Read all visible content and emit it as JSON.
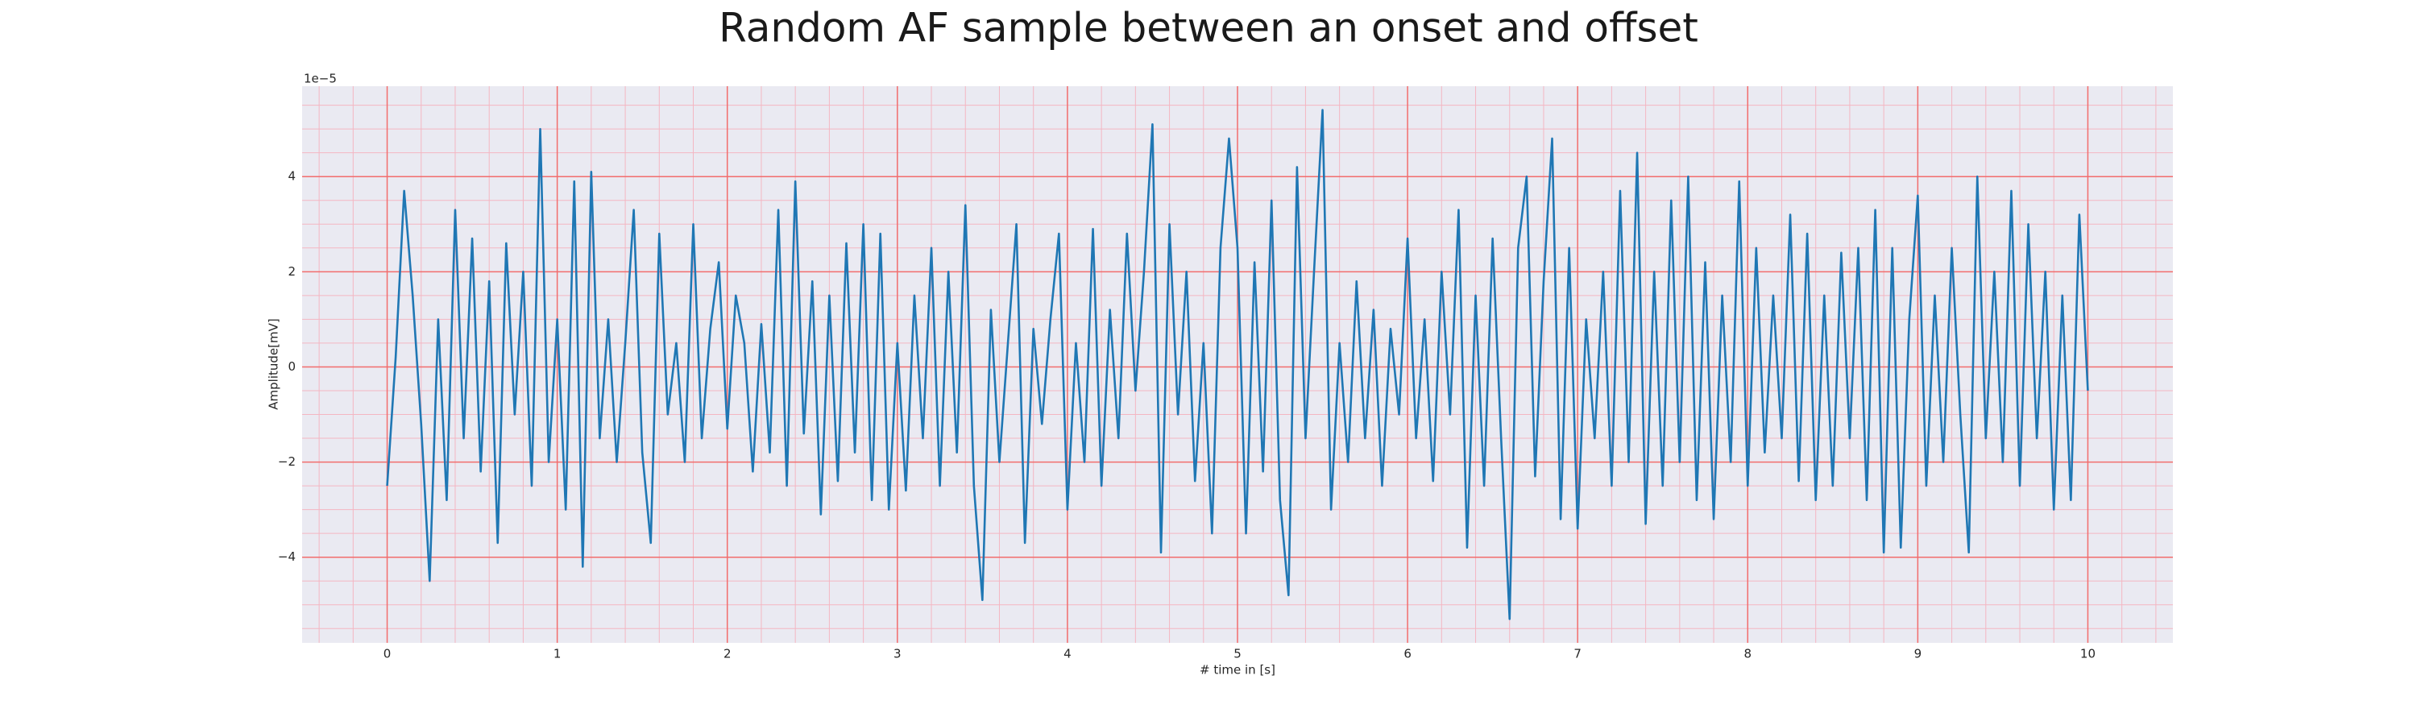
{
  "chart_data": {
    "type": "line",
    "title": "Random AF sample between an onset and offset",
    "xlabel": "# time in [s]",
    "ylabel": "Amplitude[mV]",
    "y_offset_label": "1e−5",
    "color": "#1f77b4",
    "grid": true,
    "minor_grid": true,
    "xlim": [
      -0.5,
      10.5
    ],
    "ylim": [
      -5.8,
      5.9
    ],
    "xticks": [
      0,
      1,
      2,
      3,
      4,
      5,
      6,
      7,
      8,
      9,
      10
    ],
    "yticks": [
      {
        "value": -4,
        "label": "−4"
      },
      {
        "value": -2,
        "label": "−2"
      },
      0,
      2,
      4
    ],
    "xminorticks": [
      -0.4,
      -0.2,
      0.2,
      0.4,
      0.6,
      0.8,
      1.2,
      1.4,
      1.6,
      1.8,
      2.2,
      2.4,
      2.6,
      2.8,
      3.2,
      3.4,
      3.6,
      3.8,
      4.2,
      4.4,
      4.6,
      4.8,
      5.2,
      5.4,
      5.6,
      5.8,
      6.2,
      6.4,
      6.6,
      6.8,
      7.2,
      7.4,
      7.6,
      7.8,
      8.2,
      8.4,
      8.6,
      8.8,
      9.2,
      9.4,
      9.6,
      9.8,
      10.2,
      10.4
    ],
    "yminorticks": [
      -5.5,
      -5,
      -4.5,
      -3.5,
      -3,
      -2.5,
      -1.5,
      -1,
      -0.5,
      0.5,
      1,
      1.5,
      2.5,
      3,
      3.5,
      4.5,
      5,
      5.5
    ],
    "x": [
      0,
      0.05,
      0.1,
      0.15,
      0.2,
      0.25,
      0.3,
      0.35,
      0.4,
      0.45,
      0.5,
      0.55,
      0.6,
      0.65,
      0.7,
      0.75,
      0.8,
      0.85,
      0.9,
      0.95,
      1,
      1.05,
      1.1,
      1.15,
      1.2,
      1.25,
      1.3,
      1.35,
      1.4,
      1.45,
      1.5,
      1.55,
      1.6,
      1.65,
      1.7,
      1.75,
      1.8,
      1.85,
      1.9,
      1.95,
      2,
      2.05,
      2.1,
      2.15,
      2.2,
      2.25,
      2.3,
      2.35,
      2.4,
      2.45,
      2.5,
      2.55,
      2.6,
      2.65,
      2.7,
      2.75,
      2.8,
      2.85,
      2.9,
      2.95,
      3,
      3.05,
      3.1,
      3.15,
      3.2,
      3.25,
      3.3,
      3.35,
      3.4,
      3.45,
      3.5,
      3.55,
      3.6,
      3.65,
      3.7,
      3.75,
      3.8,
      3.85,
      3.9,
      3.95,
      4,
      4.05,
      4.1,
      4.15,
      4.2,
      4.25,
      4.3,
      4.35,
      4.4,
      4.45,
      4.5,
      4.55,
      4.6,
      4.65,
      4.7,
      4.75,
      4.8,
      4.85,
      4.9,
      4.95,
      5,
      5.05,
      5.1,
      5.15,
      5.2,
      5.25,
      5.3,
      5.35,
      5.4,
      5.45,
      5.5,
      5.55,
      5.6,
      5.65,
      5.7,
      5.75,
      5.8,
      5.85,
      5.9,
      5.95,
      6,
      6.05,
      6.1,
      6.15,
      6.2,
      6.25,
      6.3,
      6.35,
      6.4,
      6.45,
      6.5,
      6.55,
      6.6,
      6.65,
      6.7,
      6.75,
      6.8,
      6.85,
      6.9,
      6.95,
      7,
      7.05,
      7.1,
      7.15,
      7.2,
      7.25,
      7.3,
      7.35,
      7.4,
      7.45,
      7.5,
      7.55,
      7.6,
      7.65,
      7.7,
      7.75,
      7.8,
      7.85,
      7.9,
      7.95,
      8,
      8.05,
      8.1,
      8.15,
      8.2,
      8.25,
      8.3,
      8.35,
      8.4,
      8.45,
      8.5,
      8.55,
      8.6,
      8.65,
      8.7,
      8.75,
      8.8,
      8.85,
      8.9,
      8.95,
      9,
      9.05,
      9.1,
      9.15,
      9.2,
      9.25,
      9.3,
      9.35,
      9.4,
      9.45,
      9.5,
      9.55,
      9.6,
      9.65,
      9.7,
      9.75,
      9.8,
      9.85,
      9.9,
      9.95,
      10
    ],
    "values": [
      -2.5,
      0.2,
      3.7,
      1.5,
      -1.2,
      -4.5,
      1.0,
      -2.8,
      3.3,
      -1.5,
      2.7,
      -2.2,
      1.8,
      -3.7,
      2.6,
      -1.0,
      2.0,
      -2.5,
      5.0,
      -2.0,
      1.0,
      -3.0,
      3.9,
      -4.2,
      4.1,
      -1.5,
      1.0,
      -2.0,
      0.5,
      3.3,
      -1.8,
      -3.7,
      2.8,
      -1.0,
      0.5,
      -2.0,
      3.0,
      -1.5,
      0.8,
      2.2,
      -1.3,
      1.5,
      0.5,
      -2.2,
      0.9,
      -1.8,
      3.3,
      -2.5,
      3.9,
      -1.4,
      1.8,
      -3.1,
      1.5,
      -2.4,
      2.6,
      -1.8,
      3.0,
      -2.8,
      2.8,
      -3.0,
      0.5,
      -2.6,
      1.5,
      -1.5,
      2.5,
      -2.5,
      2.0,
      -1.8,
      3.4,
      -2.5,
      -4.9,
      1.2,
      -2.0,
      0.5,
      3.0,
      -3.7,
      0.8,
      -1.2,
      1.0,
      2.8,
      -3.0,
      0.5,
      -2.0,
      2.9,
      -2.5,
      1.2,
      -1.5,
      2.8,
      -0.5,
      2.0,
      5.1,
      -3.9,
      3.0,
      -1.0,
      2.0,
      -2.4,
      0.5,
      -3.5,
      2.5,
      4.8,
      2.5,
      -3.5,
      2.2,
      -2.2,
      3.5,
      -2.8,
      -4.8,
      4.2,
      -1.5,
      2.0,
      5.4,
      -3.0,
      0.5,
      -2.0,
      1.8,
      -1.5,
      1.2,
      -2.5,
      0.8,
      -1.0,
      2.7,
      -1.5,
      1.0,
      -2.4,
      2.0,
      -1.0,
      3.3,
      -3.8,
      1.5,
      -2.5,
      2.7,
      -1.5,
      -5.3,
      2.5,
      4.0,
      -2.3,
      1.8,
      4.8,
      -3.2,
      2.5,
      -3.4,
      1.0,
      -1.5,
      2.0,
      -2.5,
      3.7,
      -2.0,
      4.5,
      -3.3,
      2.0,
      -2.5,
      3.5,
      -2.0,
      4.0,
      -2.8,
      2.2,
      -3.2,
      1.5,
      -2.0,
      3.9,
      -2.5,
      2.5,
      -1.8,
      1.5,
      -1.5,
      3.2,
      -2.4,
      2.8,
      -2.8,
      1.5,
      -2.5,
      2.4,
      -1.5,
      2.5,
      -2.8,
      3.3,
      -3.9,
      2.5,
      -3.8,
      1.0,
      3.6,
      -2.5,
      1.5,
      -2.0,
      2.5,
      -1.0,
      -3.9,
      4.0,
      -1.5,
      2.0,
      -2.0,
      3.7,
      -2.5,
      3.0,
      -1.5,
      2.0,
      -3.0,
      1.5,
      -2.8,
      3.2,
      -0.5
    ]
  }
}
